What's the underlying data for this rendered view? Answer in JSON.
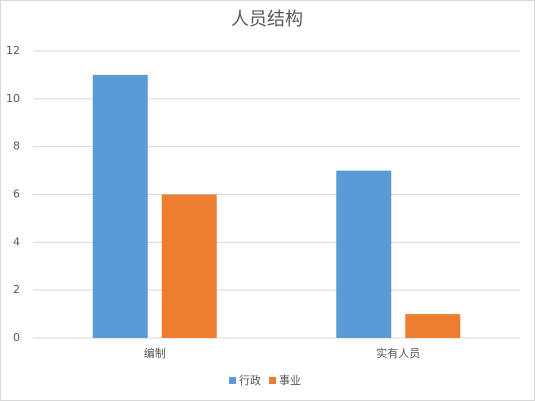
{
  "chart_data": {
    "type": "bar",
    "title": "人员结构",
    "categories": [
      "编制",
      "实有人员"
    ],
    "series": [
      {
        "name": "行政",
        "color": "#5b9bd5",
        "values": [
          11,
          7
        ]
      },
      {
        "name": "事业",
        "color": "#ed7d31",
        "values": [
          6,
          1
        ]
      }
    ],
    "ylim": [
      0,
      12
    ],
    "yticks": [
      0,
      2,
      4,
      6,
      8,
      10,
      12
    ],
    "grid": true,
    "legend": "bottom"
  }
}
